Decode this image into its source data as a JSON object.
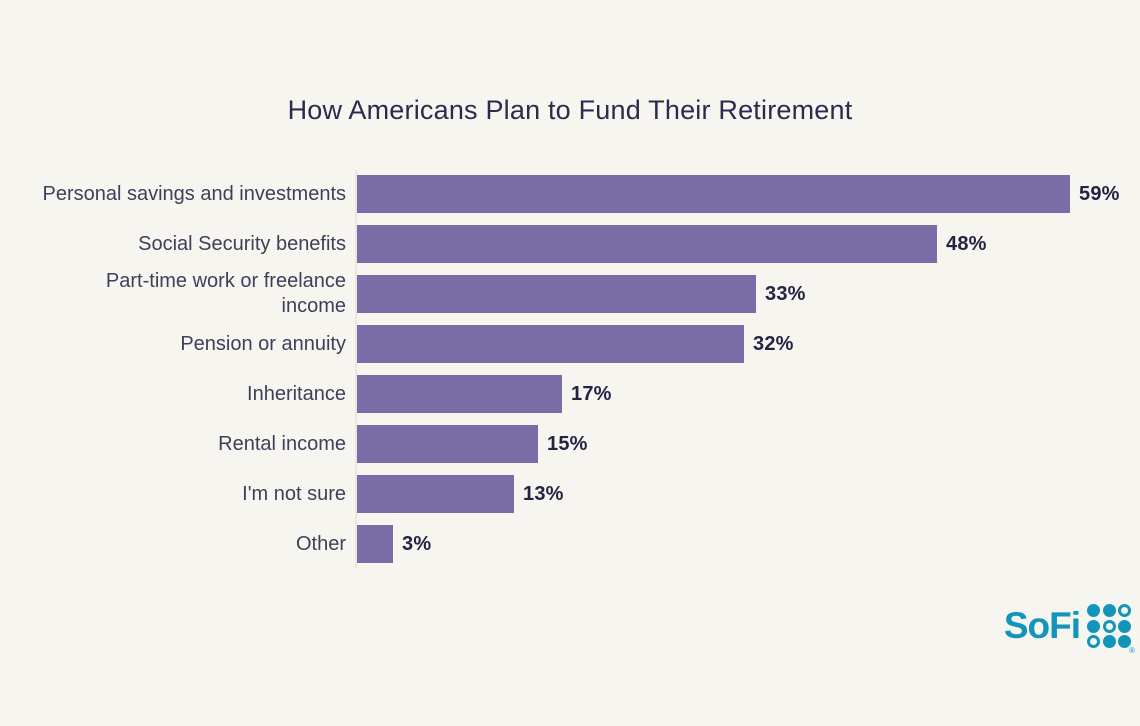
{
  "page": {
    "background_color": "#f7f5ef"
  },
  "chart_data": {
    "type": "bar",
    "orientation": "horizontal",
    "title": "How Americans Plan to Fund Their Retirement",
    "categories": [
      "Personal savings and investments",
      "Social Security benefits",
      "Part-time work or freelance\nincome",
      "Pension or annuity",
      "Inheritance",
      "Rental income",
      "I'm not sure",
      "Other"
    ],
    "values": [
      59,
      48,
      33,
      32,
      17,
      15,
      13,
      3
    ],
    "value_labels": [
      "59%",
      "48%",
      "33%",
      "32%",
      "17%",
      "15%",
      "13%",
      "3%"
    ],
    "unit": "%",
    "xlim": [
      0,
      62
    ],
    "bar_color": "#786da6",
    "grid": false,
    "legend": false,
    "value_label_position": "end-of-bar"
  },
  "branding": {
    "logo_text": "SoFi",
    "registered_mark": "®",
    "logo_color": "#1295ba",
    "dot_grid_pattern": [
      [
        1,
        1,
        0
      ],
      [
        1,
        0,
        1
      ],
      [
        0,
        1,
        1
      ]
    ]
  },
  "colors": {
    "title": "#2d2a4d",
    "category_label": "#403e58",
    "value_label": "#262243",
    "axis_line": "#eae7de"
  }
}
